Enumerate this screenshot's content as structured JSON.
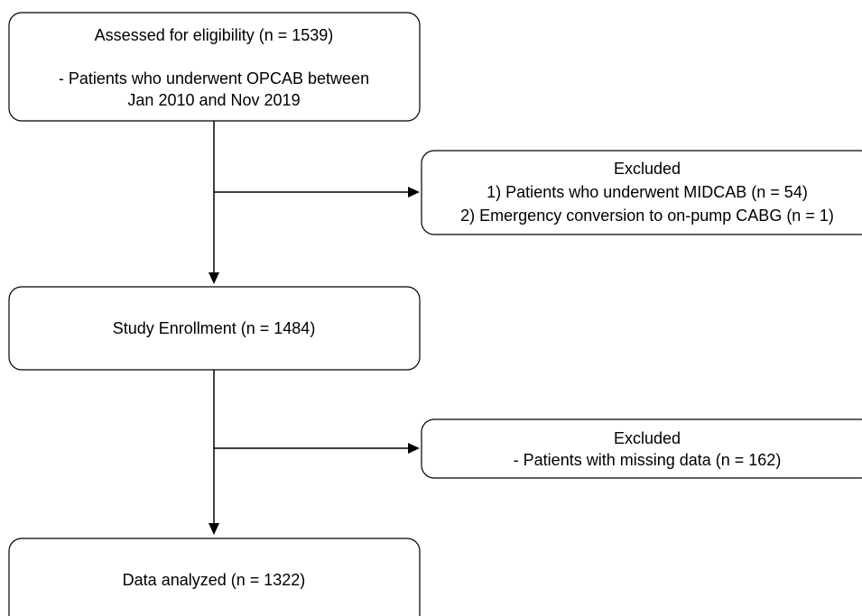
{
  "nodes": [
    {
      "lines": [
        "Assessed for eligibility (n = 1539)",
        "- Patients who underwent OPCAB between",
        "Jan 2010 and Nov 2019"
      ]
    },
    {
      "lines": [
        "Excluded",
        "1) Patients who underwent MIDCAB (n = 54)",
        "2) Emergency conversion to on-pump CABG (n = 1)"
      ]
    },
    {
      "lines": [
        "Study Enrollment (n = 1484)"
      ]
    },
    {
      "lines": [
        "Excluded",
        "- Patients with missing data (n = 162)"
      ]
    },
    {
      "lines": [
        "Data analyzed (n = 1322)"
      ]
    }
  ]
}
